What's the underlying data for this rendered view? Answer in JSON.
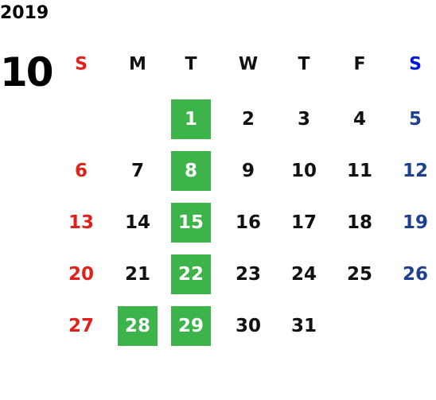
{
  "year": "2019",
  "month": "10",
  "weekdays": [
    "S",
    "M",
    "T",
    "W",
    "T",
    "F",
    "S"
  ],
  "weeks": [
    [
      null,
      null,
      {
        "day": "1",
        "highlight": true
      },
      {
        "day": "2"
      },
      {
        "day": "3"
      },
      {
        "day": "4"
      },
      {
        "day": "5"
      }
    ],
    [
      {
        "day": "6"
      },
      {
        "day": "7"
      },
      {
        "day": "8",
        "highlight": true
      },
      {
        "day": "9"
      },
      {
        "day": "10"
      },
      {
        "day": "11"
      },
      {
        "day": "12"
      }
    ],
    [
      {
        "day": "13"
      },
      {
        "day": "14"
      },
      {
        "day": "15",
        "highlight": true
      },
      {
        "day": "16"
      },
      {
        "day": "17"
      },
      {
        "day": "18"
      },
      {
        "day": "19"
      }
    ],
    [
      {
        "day": "20"
      },
      {
        "day": "21"
      },
      {
        "day": "22",
        "highlight": true
      },
      {
        "day": "23"
      },
      {
        "day": "24"
      },
      {
        "day": "25"
      },
      {
        "day": "26"
      }
    ],
    [
      {
        "day": "27"
      },
      {
        "day": "28",
        "highlight": true
      },
      {
        "day": "29",
        "highlight": true
      },
      {
        "day": "30"
      },
      {
        "day": "31"
      },
      null,
      null
    ]
  ]
}
